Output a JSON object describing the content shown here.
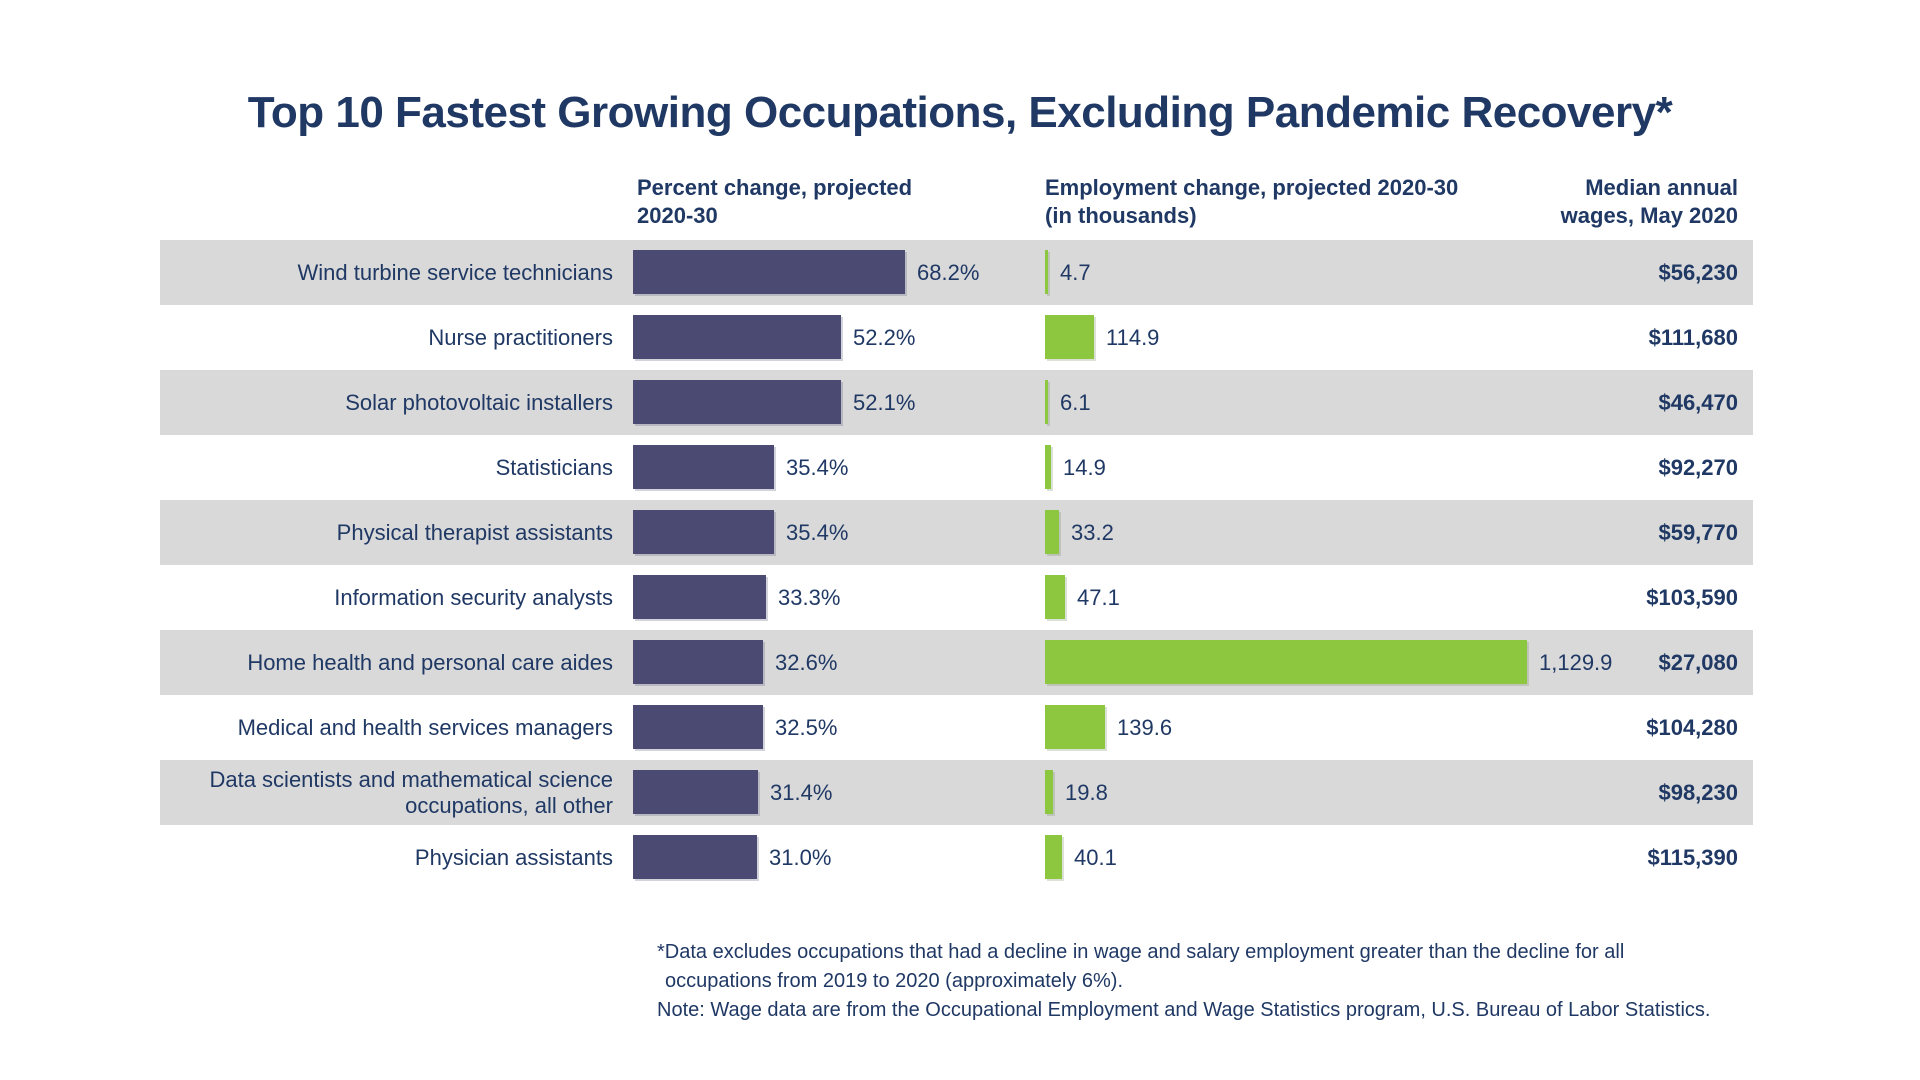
{
  "title": "Top 10 Fastest Growing Occupations, Excluding Pandemic Recovery*",
  "columns": {
    "percent_header": "Percent change, projected\n2020-30",
    "employment_header": "Employment change, projected 2020-30\n(in thousands)",
    "wages_header": "Median annual\nwages, May 2020"
  },
  "colors": {
    "navy": "#1f3864",
    "purple_bar": "#4a4a72",
    "green_bar": "#8dc73f",
    "stripe_gray": "#d9d9d9",
    "background": "#ffffff"
  },
  "rows": [
    {
      "label": "Wind turbine service technicians",
      "pct": 68.2,
      "pct_label": "68.2%",
      "emp": 4.7,
      "emp_label": "4.7",
      "wage": "$56,230"
    },
    {
      "label": "Nurse practitioners",
      "pct": 52.2,
      "pct_label": "52.2%",
      "emp": 114.9,
      "emp_label": "114.9",
      "wage": "$111,680"
    },
    {
      "label": "Solar photovoltaic installers",
      "pct": 52.1,
      "pct_label": "52.1%",
      "emp": 6.1,
      "emp_label": "6.1",
      "wage": "$46,470"
    },
    {
      "label": "Statisticians",
      "pct": 35.4,
      "pct_label": "35.4%",
      "emp": 14.9,
      "emp_label": "14.9",
      "wage": "$92,270"
    },
    {
      "label": "Physical therapist assistants",
      "pct": 35.4,
      "pct_label": "35.4%",
      "emp": 33.2,
      "emp_label": "33.2",
      "wage": "$59,770"
    },
    {
      "label": "Information security analysts",
      "pct": 33.3,
      "pct_label": "33.3%",
      "emp": 47.1,
      "emp_label": "47.1",
      "wage": "$103,590"
    },
    {
      "label": "Home health and personal care aides",
      "pct": 32.6,
      "pct_label": "32.6%",
      "emp": 1129.9,
      "emp_label": "1,129.9",
      "wage": "$27,080"
    },
    {
      "label": "Medical and health services managers",
      "pct": 32.5,
      "pct_label": "32.5%",
      "emp": 139.6,
      "emp_label": "139.6",
      "wage": "$104,280"
    },
    {
      "label": "Data scientists and mathematical science occupations, all other",
      "pct": 31.4,
      "pct_label": "31.4%",
      "emp": 19.8,
      "emp_label": "19.8",
      "wage": "$98,230"
    },
    {
      "label": "Physician assistants",
      "pct": 31.0,
      "pct_label": "31.0%",
      "emp": 40.1,
      "emp_label": "40.1",
      "wage": "$115,390"
    }
  ],
  "footnotes": [
    "*Data excludes occupations that had a decline in wage and salary employment greater than the decline for all",
    "occupations from 2019 to 2020 (approximately 6%).",
    "Note: Wage data are from the Occupational Employment and Wage Statistics program, U.S. Bureau of Labor Statistics."
  ],
  "chart_data": {
    "type": "bar",
    "orientation": "horizontal",
    "title": "Top 10 Fastest Growing Occupations, Excluding Pandemic Recovery*",
    "categories": [
      "Wind turbine service technicians",
      "Nurse practitioners",
      "Solar photovoltaic installers",
      "Statisticians",
      "Physical therapist assistants",
      "Information security analysts",
      "Home health and personal care aides",
      "Medical and health services managers",
      "Data scientists and mathematical science occupations, all other",
      "Physician assistants"
    ],
    "series": [
      {
        "name": "Percent change, projected 2020-30",
        "unit": "%",
        "color": "#4a4a72",
        "values": [
          68.2,
          52.2,
          52.1,
          35.4,
          35.4,
          33.3,
          32.6,
          32.5,
          31.4,
          31.0
        ]
      },
      {
        "name": "Employment change, projected 2020-30 (in thousands)",
        "unit": "thousands",
        "color": "#8dc73f",
        "values": [
          4.7,
          114.9,
          6.1,
          14.9,
          33.2,
          47.1,
          1129.9,
          139.6,
          19.8,
          40.1
        ]
      },
      {
        "name": "Median annual wages, May 2020",
        "unit": "USD",
        "values": [
          56230,
          111680,
          46470,
          92270,
          59770,
          103590,
          27080,
          104280,
          98230,
          115390
        ]
      }
    ],
    "layout_hints": {
      "row_striping": "alternating gray #d9d9d9 and white",
      "value_labels": "right of each bar",
      "wages_column": "right-aligned bold text column",
      "grid": false,
      "legend": false
    }
  }
}
